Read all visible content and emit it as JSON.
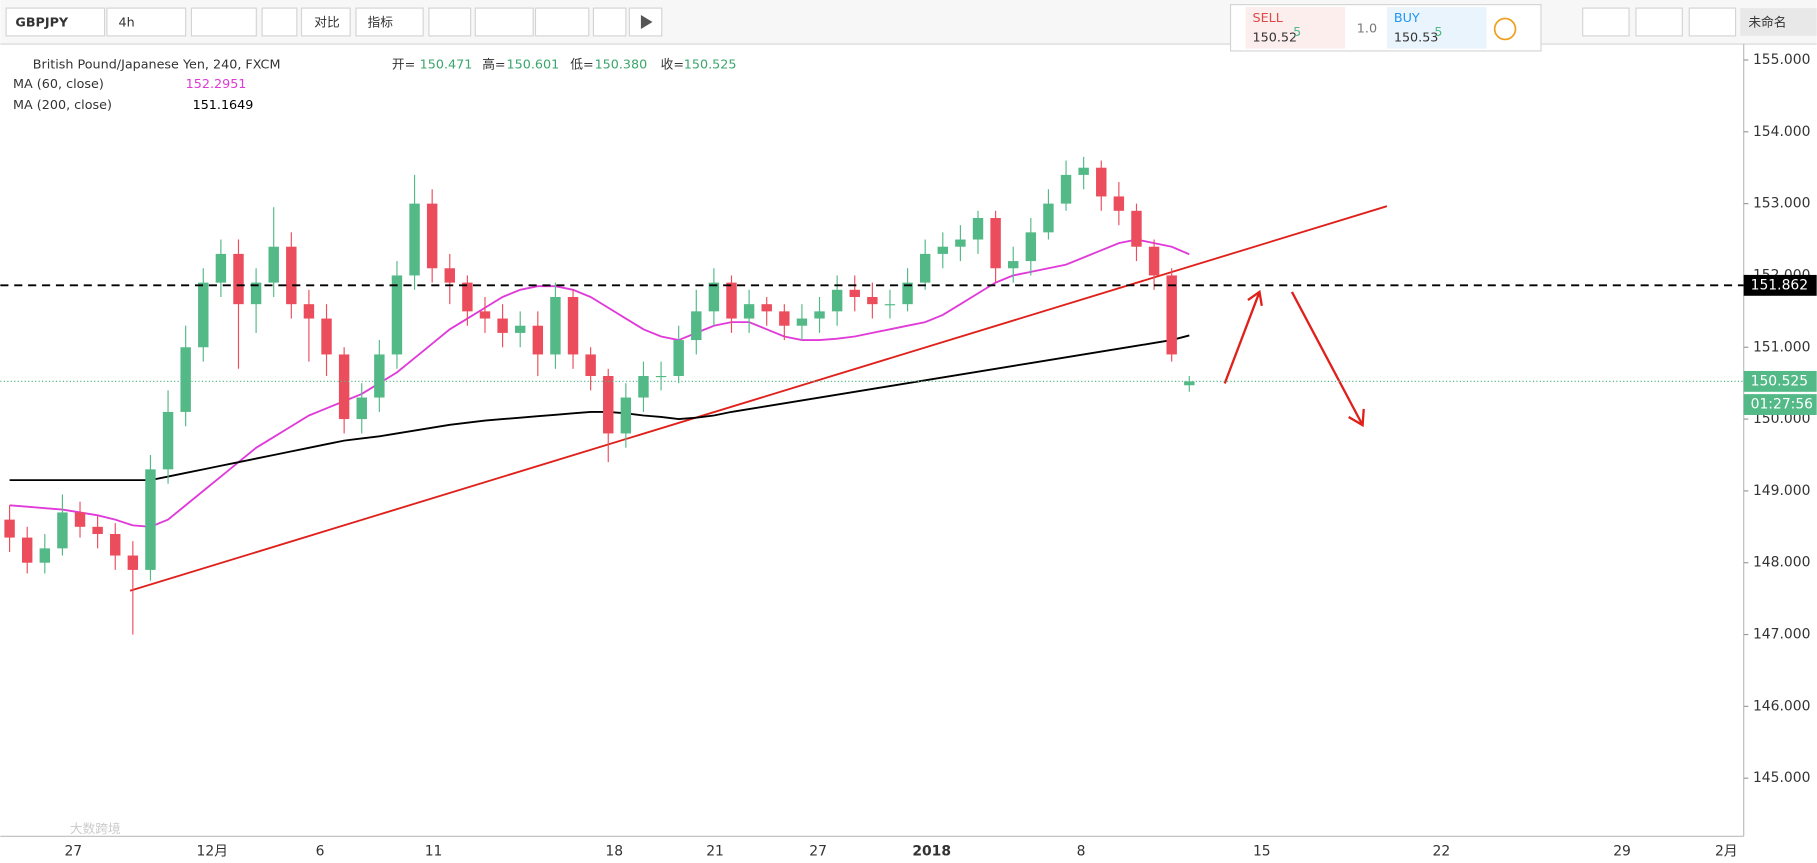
{
  "toolbar": {
    "symbol": "GBPJPY",
    "interval": "4h",
    "compare": "对比",
    "indicators": "指标",
    "sell_label": "SELL",
    "sell_price": "150.52",
    "sell_pip": "5",
    "quantity": "1.0",
    "buy_label": "BUY",
    "buy_price": "150.53",
    "buy_pip": "5",
    "layout_name": "未命名"
  },
  "legend": {
    "title": "British Pound/Japanese Yen, 240, FXCM",
    "open_label": "开=",
    "open": "150.471",
    "high_label": "高=",
    "high": "150.601",
    "low_label": "低=",
    "low": "150.380",
    "close_label": "收=",
    "close": "150.525"
  },
  "watermark": "大数跨境",
  "chart_data": {
    "type": "candlestick",
    "up_color": "#53b987",
    "down_color": "#eb4d5c",
    "ylim": [
      144.19,
      155.19
    ],
    "yticks": [
      {
        "value": 145,
        "label": "145.000"
      },
      {
        "value": 146,
        "label": "146.000"
      },
      {
        "value": 147,
        "label": "147.000"
      },
      {
        "value": 148,
        "label": "148.000"
      },
      {
        "value": 149,
        "label": "149.000"
      },
      {
        "value": 150,
        "label": "150.000"
      },
      {
        "value": 151,
        "label": "151.000"
      },
      {
        "value": 152,
        "label": "152.000"
      },
      {
        "value": 153,
        "label": "153.000"
      },
      {
        "value": 154,
        "label": "154.000"
      },
      {
        "value": 155,
        "label": "155.000"
      }
    ],
    "grid": false,
    "x_labels": [
      "27",
      "12月",
      "6",
      "11",
      "18",
      "21",
      "27",
      "2018",
      "8",
      "15",
      "22",
      "29",
      "2月"
    ],
    "open": [
      148.6,
      148.35,
      148.0,
      148.2,
      148.7,
      148.5,
      148.4,
      148.1,
      147.9,
      149.3,
      150.1,
      151.0,
      151.9,
      152.3,
      151.6,
      151.9,
      152.4,
      151.6,
      151.4,
      150.9,
      150.0,
      150.3,
      150.9,
      152.0,
      153.0,
      152.1,
      151.9,
      151.5,
      151.4,
      151.2,
      151.3,
      150.9,
      151.7,
      150.9,
      150.6,
      149.8,
      150.3,
      150.6,
      150.6,
      151.1,
      151.5,
      151.9,
      151.4,
      151.6,
      151.5,
      151.3,
      151.4,
      151.5,
      151.8,
      151.7,
      151.6,
      151.6,
      151.9,
      152.3,
      152.4,
      152.5,
      152.8,
      152.1,
      152.2,
      152.6,
      153.0,
      153.4,
      153.5,
      153.1,
      152.9,
      152.4,
      152.0,
      150.471
    ],
    "high": [
      148.8,
      148.5,
      148.4,
      148.95,
      148.85,
      148.65,
      148.55,
      148.3,
      149.5,
      150.4,
      151.3,
      152.1,
      152.5,
      152.5,
      152.1,
      152.95,
      152.6,
      151.8,
      151.6,
      151.0,
      150.5,
      151.1,
      152.2,
      153.4,
      153.2,
      152.3,
      152.0,
      151.7,
      151.6,
      151.5,
      151.5,
      151.9,
      151.8,
      151.0,
      150.7,
      150.5,
      150.8,
      150.8,
      151.3,
      151.8,
      152.1,
      152.0,
      151.8,
      151.7,
      151.6,
      151.6,
      151.7,
      152.0,
      152.0,
      151.9,
      151.8,
      152.1,
      152.5,
      152.6,
      152.7,
      152.9,
      152.9,
      152.4,
      152.8,
      153.2,
      153.6,
      153.65,
      153.6,
      153.3,
      153.0,
      152.5,
      152.1,
      150.601
    ],
    "low": [
      148.15,
      147.85,
      147.85,
      148.1,
      148.35,
      148.2,
      147.9,
      147.0,
      147.75,
      149.1,
      149.9,
      150.8,
      151.7,
      150.7,
      151.2,
      151.7,
      151.4,
      150.8,
      150.6,
      149.8,
      149.8,
      150.1,
      150.7,
      151.8,
      151.9,
      151.6,
      151.3,
      151.2,
      151.0,
      151.0,
      150.6,
      150.7,
      150.7,
      150.4,
      149.4,
      149.6,
      150.1,
      150.4,
      150.5,
      150.9,
      151.3,
      151.2,
      151.2,
      151.3,
      151.1,
      151.1,
      151.2,
      151.3,
      151.5,
      151.4,
      151.4,
      151.5,
      151.8,
      152.1,
      152.2,
      152.3,
      151.9,
      151.9,
      152.0,
      152.5,
      152.9,
      153.2,
      152.9,
      152.7,
      152.2,
      151.8,
      150.8,
      150.38
    ],
    "close": [
      148.35,
      148.0,
      148.2,
      148.7,
      148.5,
      148.4,
      148.1,
      147.9,
      149.3,
      150.1,
      151.0,
      151.9,
      152.3,
      151.6,
      151.9,
      152.4,
      151.6,
      151.4,
      150.9,
      150.0,
      150.3,
      150.9,
      152.0,
      153.0,
      152.1,
      151.9,
      151.5,
      151.4,
      151.2,
      151.3,
      150.9,
      151.7,
      150.9,
      150.6,
      149.8,
      150.3,
      150.6,
      150.6,
      151.1,
      151.5,
      151.9,
      151.4,
      151.6,
      151.5,
      151.3,
      151.4,
      151.5,
      151.8,
      151.7,
      151.6,
      151.6,
      151.9,
      152.3,
      152.4,
      152.5,
      152.8,
      152.1,
      152.2,
      152.6,
      153.0,
      153.4,
      153.5,
      153.1,
      152.9,
      152.4,
      152.0,
      150.9,
      150.525
    ],
    "series": [
      {
        "name": "MA (60, close)",
        "color": "#e03ad8",
        "values": [
          148.8,
          148.78,
          148.76,
          148.74,
          148.7,
          148.66,
          148.6,
          148.52,
          148.5,
          148.6,
          148.8,
          149.0,
          149.2,
          149.4,
          149.6,
          149.75,
          149.9,
          150.05,
          150.15,
          150.25,
          150.35,
          150.5,
          150.65,
          150.85,
          151.05,
          151.25,
          151.4,
          151.55,
          151.7,
          151.8,
          151.85,
          151.85,
          151.8,
          151.7,
          151.55,
          151.4,
          151.25,
          151.15,
          151.1,
          151.2,
          151.3,
          151.35,
          151.35,
          151.25,
          151.15,
          151.1,
          151.1,
          151.12,
          151.15,
          151.2,
          151.25,
          151.3,
          151.35,
          151.45,
          151.6,
          151.75,
          151.9,
          152.0,
          152.05,
          152.1,
          152.15,
          152.25,
          152.35,
          152.45,
          152.5,
          152.45,
          152.4,
          152.2951
        ]
      },
      {
        "name": "MA (200, close)",
        "color": "#000000",
        "values": [
          149.15,
          149.15,
          149.15,
          149.15,
          149.15,
          149.15,
          149.15,
          149.15,
          149.15,
          149.2,
          149.25,
          149.3,
          149.35,
          149.4,
          149.45,
          149.5,
          149.55,
          149.6,
          149.65,
          149.7,
          149.73,
          149.76,
          149.8,
          149.84,
          149.88,
          149.92,
          149.95,
          149.98,
          150.0,
          150.02,
          150.04,
          150.06,
          150.08,
          150.1,
          150.1,
          150.08,
          150.05,
          150.03,
          150.0,
          150.02,
          150.05,
          150.1,
          150.14,
          150.18,
          150.22,
          150.26,
          150.3,
          150.34,
          150.38,
          150.42,
          150.46,
          150.5,
          150.54,
          150.58,
          150.62,
          150.66,
          150.7,
          150.74,
          150.78,
          150.82,
          150.86,
          150.9,
          150.94,
          150.98,
          151.02,
          151.06,
          151.1,
          151.1649
        ]
      }
    ],
    "price_line": {
      "value": 151.862,
      "label": "151.862"
    },
    "last_price": {
      "value": 150.525,
      "label": "150.525"
    },
    "countdown": "01:27:56"
  }
}
